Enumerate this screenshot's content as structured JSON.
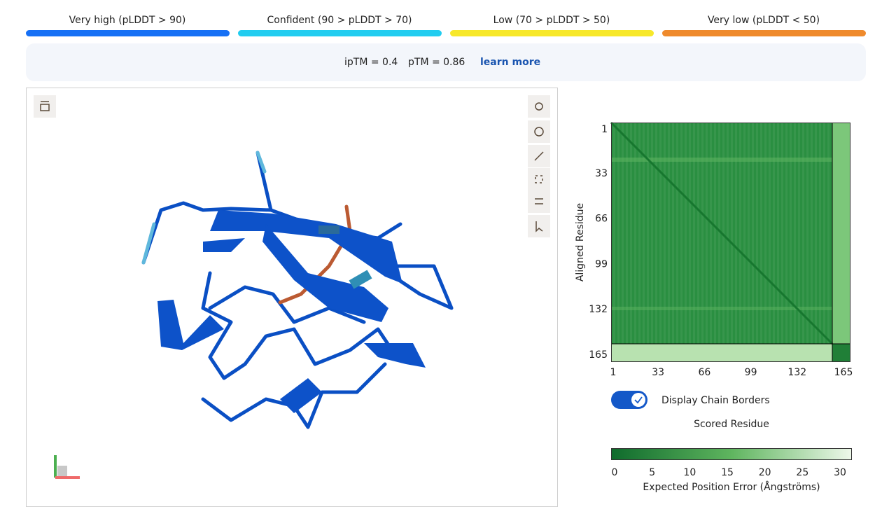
{
  "legend": [
    {
      "label": "Very high (pLDDT > 90)",
      "color": "#1670f5"
    },
    {
      "label": "Confident (90 > pLDDT > 70)",
      "color": "#21cdf0"
    },
    {
      "label": "Low (70 > pLDDT > 50)",
      "color": "#f7e82a"
    },
    {
      "label": "Very low (pLDDT < 50)",
      "color": "#ef8a2c"
    }
  ],
  "metrics": {
    "iptm": "ipTM = 0.4",
    "ptm": "pTM = 0.86",
    "link": "learn more"
  },
  "pae": {
    "y_label": "Aligned Residue",
    "x_label": "Scored Residue",
    "ticks": [
      1,
      33,
      66,
      99,
      132,
      165
    ],
    "toggle": "Display Chain Borders",
    "colorbar_ticks": [
      0,
      5,
      10,
      15,
      20,
      25,
      30
    ],
    "colorbar_label": "Expected Position Error (Ångströms)"
  }
}
